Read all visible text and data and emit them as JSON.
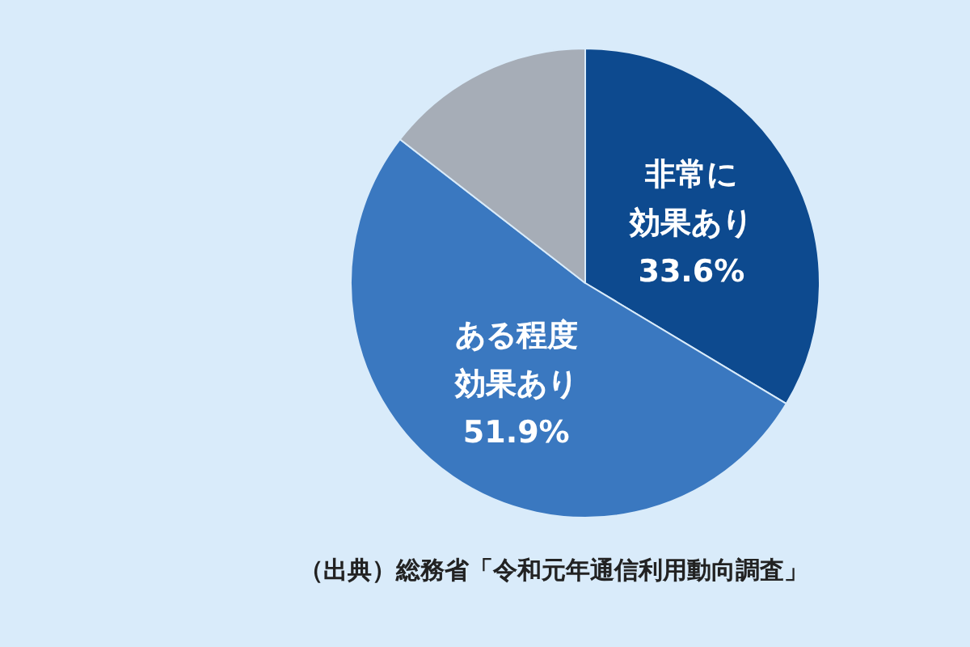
{
  "chart_data": {
    "type": "pie",
    "categories": [
      "非常に効果あり",
      "ある程度効果あり",
      null
    ],
    "values": [
      33.6,
      51.9,
      14.5
    ],
    "value_labels": [
      "33.6%",
      "51.9%",
      null
    ],
    "colors": [
      "#0d4a8f",
      "#3a78c0",
      "#a6adb7"
    ],
    "legend": false,
    "annotations": [
      "（出典）総務省「令和元年通信利用動向調査」"
    ]
  }
}
